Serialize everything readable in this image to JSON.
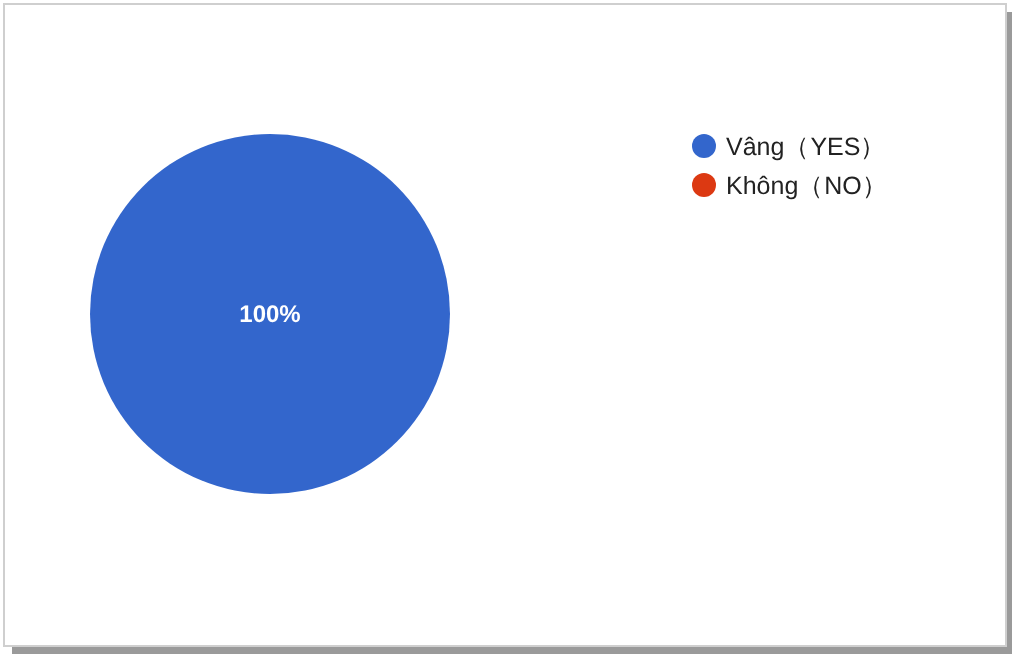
{
  "chart_data": {
    "type": "pie",
    "categories": [
      "Vâng（YES）",
      "Không（NO）"
    ],
    "values": [
      100,
      0
    ],
    "colors": [
      "#3366cc",
      "#dc3912"
    ],
    "legend": "top right",
    "value_labels": [
      "100%",
      null
    ]
  }
}
